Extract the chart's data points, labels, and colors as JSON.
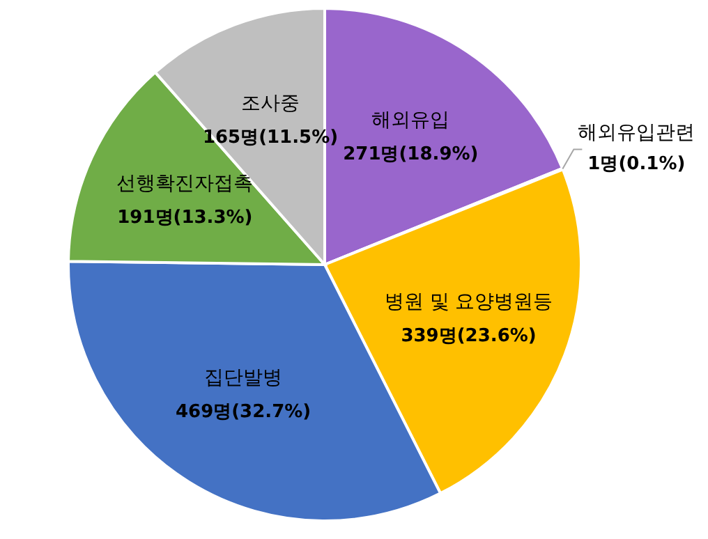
{
  "chart_data": {
    "type": "pie",
    "categories": [
      "해외유입",
      "해외유입관련",
      "병원 및 요양병원등",
      "집단발병",
      "선행확진자접촉",
      "조사중"
    ],
    "values": [
      271,
      1,
      339,
      469,
      191,
      165
    ],
    "value_labels": [
      "271명(18.9%)",
      "1명(0.1%)",
      "339명(23.6%)",
      "469명(32.7%)",
      "191명(13.3%)",
      "165명(11.5%)"
    ],
    "colors": [
      "#9966cc",
      "#ed7d31",
      "#ffc000",
      "#4472c4",
      "#70ad47",
      "#bfbfbf"
    ]
  }
}
